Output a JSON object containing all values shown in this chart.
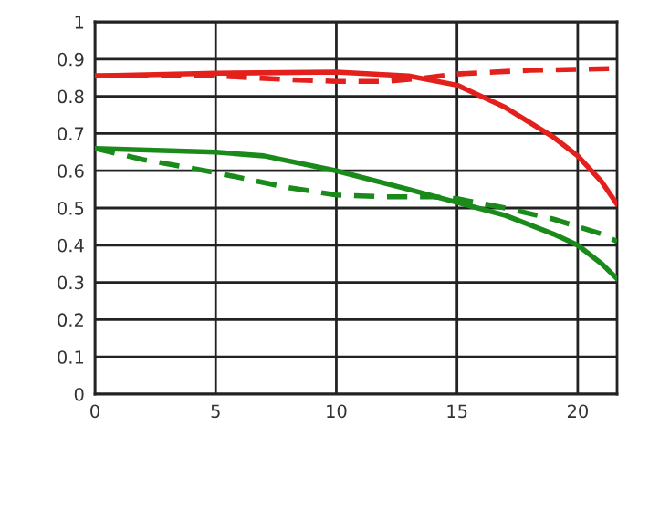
{
  "chart_data": {
    "type": "line",
    "xlim": [
      0,
      21.63
    ],
    "ylim": [
      0,
      1
    ],
    "xticks": [
      0,
      5,
      10,
      15,
      20
    ],
    "yticks": [
      0,
      0.1,
      0.2,
      0.3,
      0.4,
      0.5,
      0.6,
      0.7,
      0.8,
      0.9,
      1
    ],
    "grid": true,
    "marker": "none",
    "series": [
      {
        "color": "#e3201c",
        "line_style": "solid",
        "x": [
          0,
          5,
          10,
          13,
          15,
          17,
          19,
          20,
          21,
          21.63
        ],
        "values": [
          0.855,
          0.862,
          0.865,
          0.855,
          0.83,
          0.77,
          0.69,
          0.64,
          0.57,
          0.51
        ]
      },
      {
        "color": "#e3201c",
        "line_style": "dashed",
        "x": [
          0,
          5,
          8,
          10,
          12,
          13.5,
          15,
          18,
          21.63
        ],
        "values": [
          0.855,
          0.855,
          0.845,
          0.84,
          0.84,
          0.848,
          0.86,
          0.87,
          0.875
        ]
      },
      {
        "color": "#1a8a1a",
        "line_style": "solid",
        "x": [
          0,
          5,
          7,
          10,
          13,
          15,
          17,
          19,
          20,
          21,
          21.63
        ],
        "values": [
          0.66,
          0.65,
          0.64,
          0.6,
          0.55,
          0.515,
          0.48,
          0.43,
          0.4,
          0.35,
          0.31
        ]
      },
      {
        "color": "#1a8a1a",
        "line_style": "dashed",
        "x": [
          0,
          2,
          5,
          8,
          10,
          12,
          14,
          15,
          17,
          19,
          20,
          21,
          21.63
        ],
        "values": [
          0.66,
          0.63,
          0.595,
          0.555,
          0.535,
          0.53,
          0.53,
          0.525,
          0.5,
          0.47,
          0.45,
          0.43,
          0.41
        ]
      }
    ]
  }
}
